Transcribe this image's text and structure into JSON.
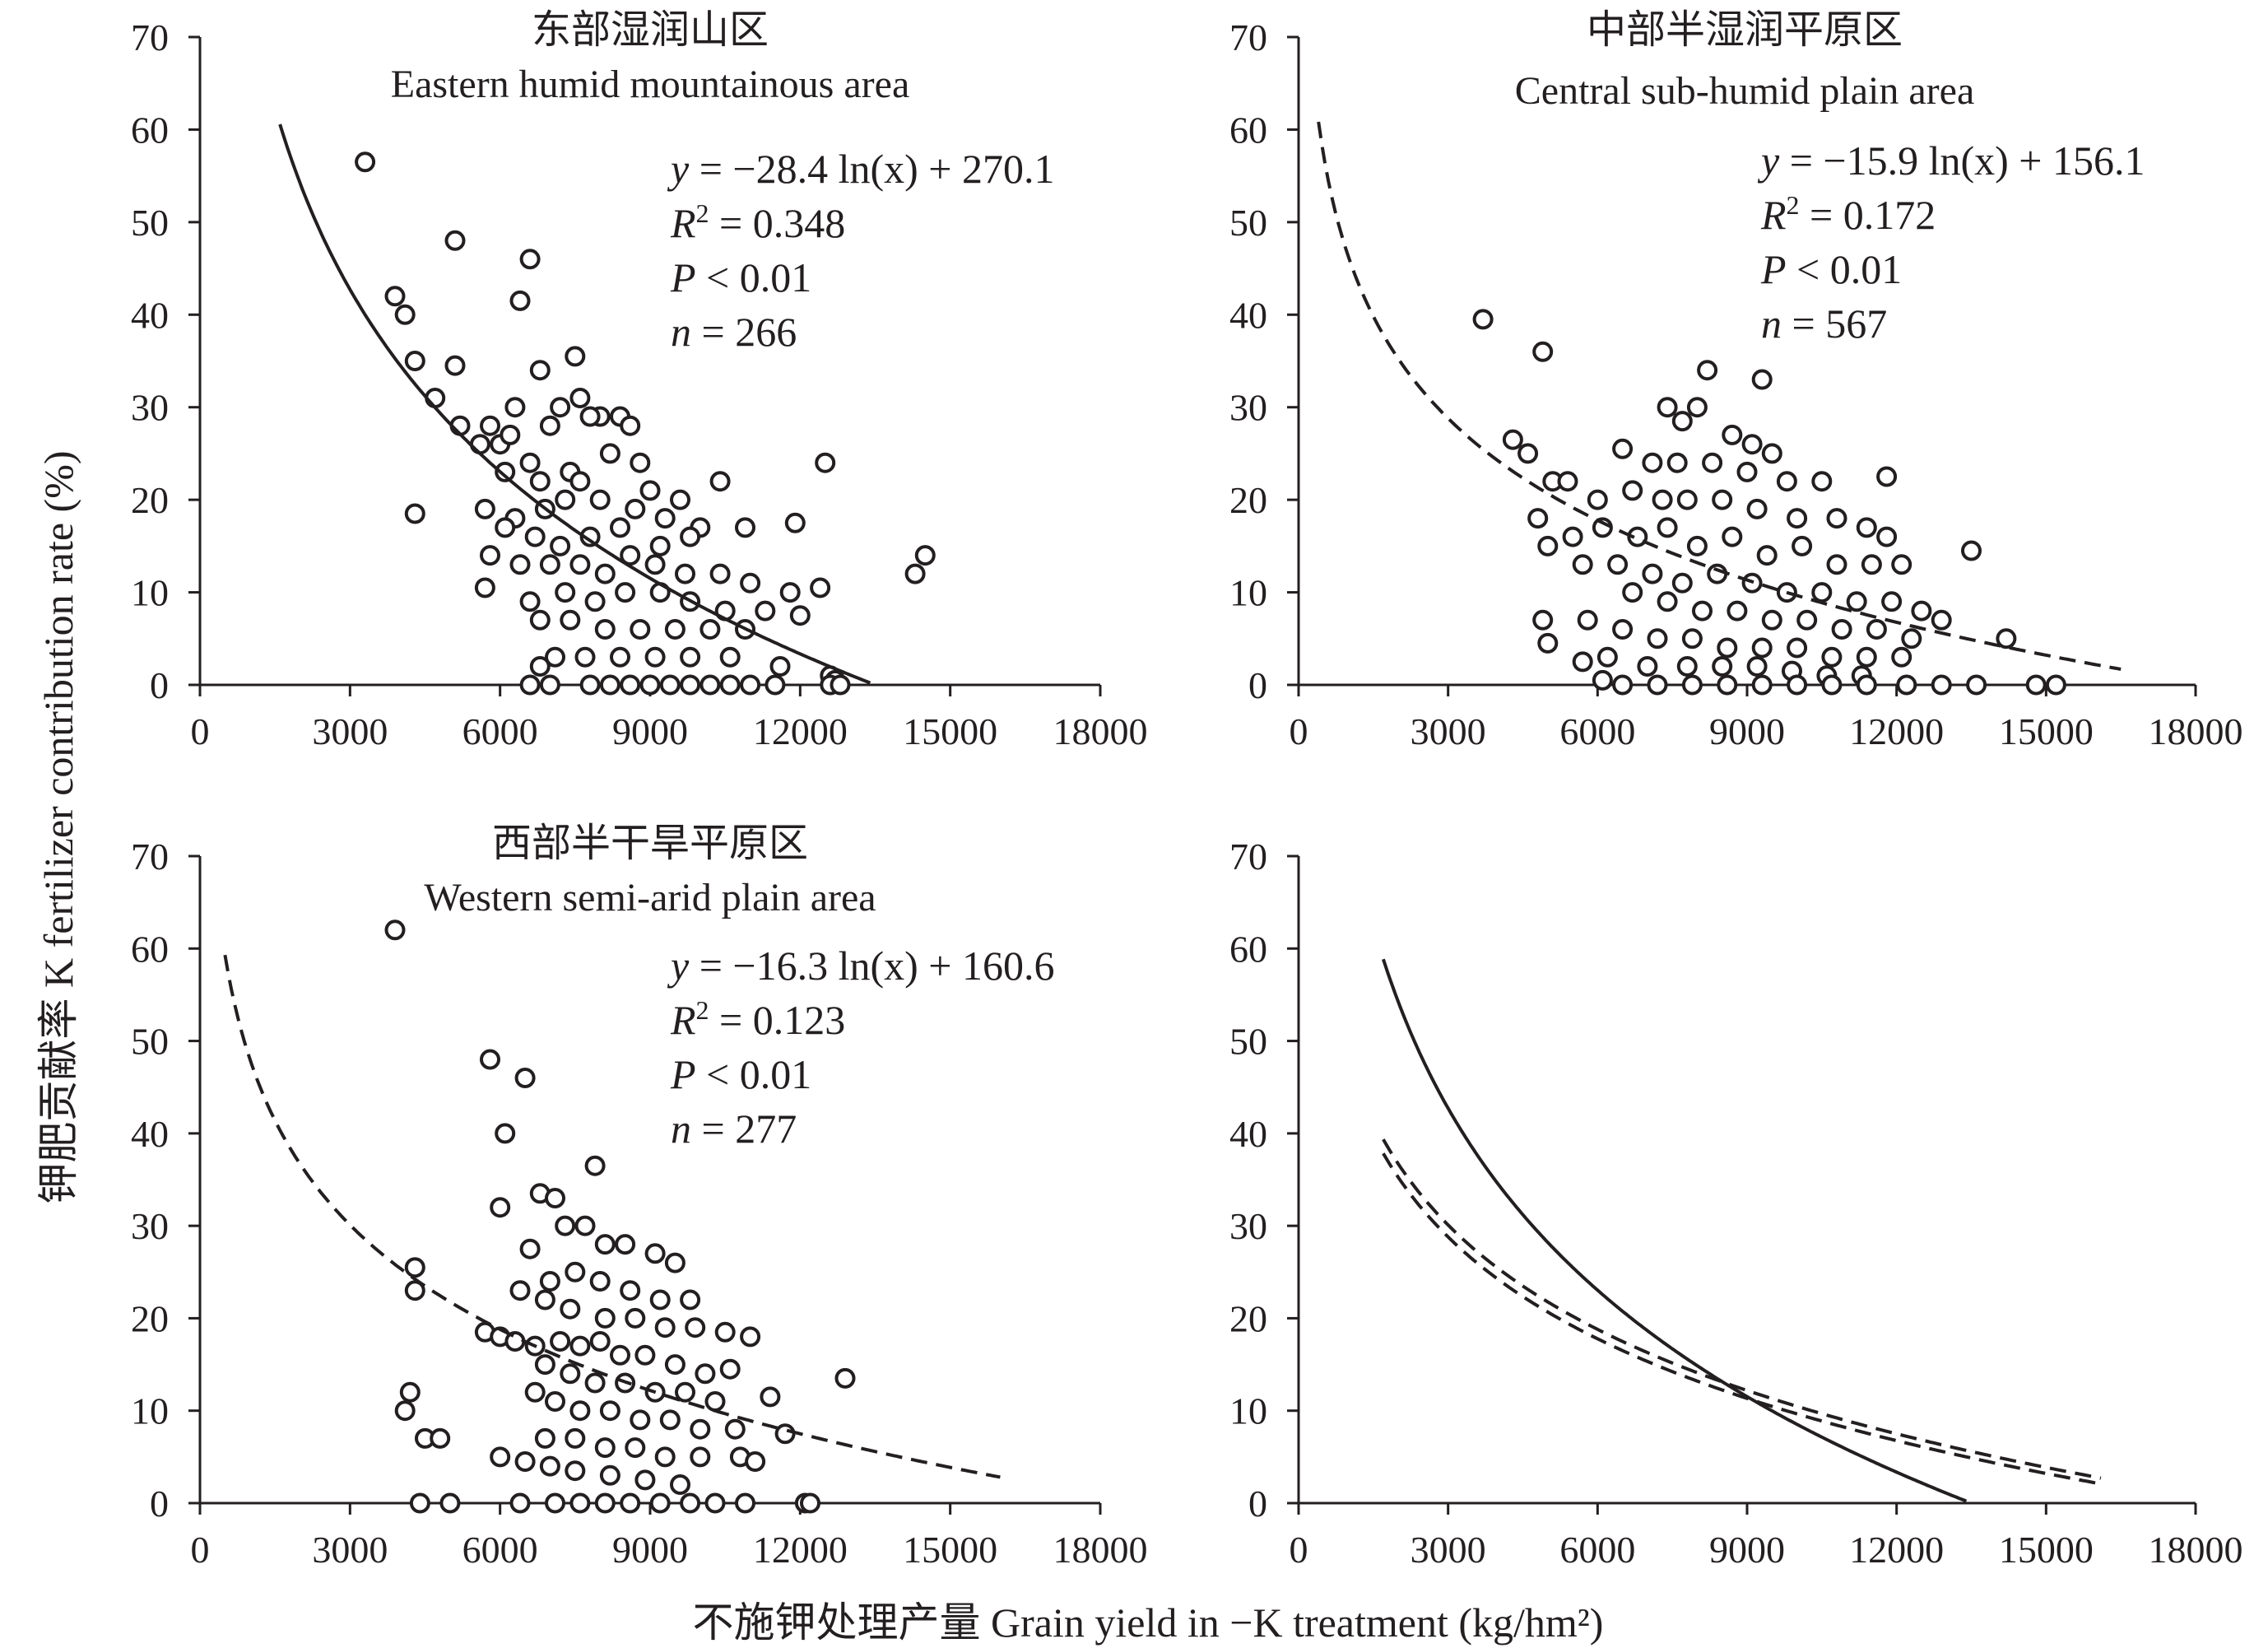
{
  "figure": {
    "y_axis_label": "钾肥贡献率 K fertilizer contribution rate (%)",
    "x_axis_label": "不施钾处理产量 Grain yield in −K treatment (kg/hm²)"
  },
  "chart_data": [
    {
      "type": "scatter",
      "title": "东部湿润山区",
      "subtitle": "Eastern humid mountainous area",
      "line_style": "solid",
      "fit": {
        "model": "logarithmic",
        "a": -28.4,
        "b": 270.1,
        "x_range": [
          1600,
          13400
        ]
      },
      "stats": {
        "equation_rhs": "−28.4 ln(x) + 270.1",
        "r2": "0.348",
        "p": "0.01",
        "n": "266"
      },
      "xlim": [
        0,
        18000
      ],
      "ylim": [
        0,
        70
      ],
      "xticks": [
        "0",
        "3000",
        "6000",
        "9000",
        "12000",
        "15000",
        "18000"
      ],
      "yticks": [
        "0",
        "10",
        "20",
        "30",
        "40",
        "50",
        "60",
        "70"
      ],
      "points": [
        [
          3300,
          56.5
        ],
        [
          5100,
          48
        ],
        [
          6600,
          46
        ],
        [
          3900,
          42
        ],
        [
          4100,
          40
        ],
        [
          6400,
          41.5
        ],
        [
          4300,
          35
        ],
        [
          5100,
          34.5
        ],
        [
          7500,
          35.5
        ],
        [
          6800,
          34
        ],
        [
          4700,
          31
        ],
        [
          6300,
          30
        ],
        [
          7200,
          30
        ],
        [
          7600,
          31
        ],
        [
          8000,
          29
        ],
        [
          8400,
          29
        ],
        [
          5800,
          28
        ],
        [
          6000,
          26
        ],
        [
          6200,
          27
        ],
        [
          7000,
          28
        ],
        [
          7800,
          29
        ],
        [
          8600,
          28
        ],
        [
          6600,
          24
        ],
        [
          7400,
          23
        ],
        [
          8200,
          25
        ],
        [
          8800,
          24
        ],
        [
          5200,
          28
        ],
        [
          5600,
          26
        ],
        [
          6100,
          23
        ],
        [
          6800,
          22
        ],
        [
          7600,
          22
        ],
        [
          9000,
          21
        ],
        [
          9600,
          20
        ],
        [
          10400,
          22
        ],
        [
          5700,
          19
        ],
        [
          6300,
          18
        ],
        [
          6900,
          19
        ],
        [
          7300,
          20
        ],
        [
          8000,
          20
        ],
        [
          8700,
          19
        ],
        [
          9300,
          18
        ],
        [
          10000,
          17
        ],
        [
          10900,
          17
        ],
        [
          11900,
          17.5
        ],
        [
          12500,
          24
        ],
        [
          4300,
          18.5
        ],
        [
          6100,
          17
        ],
        [
          6700,
          16
        ],
        [
          7200,
          15
        ],
        [
          7800,
          16
        ],
        [
          8400,
          17
        ],
        [
          9200,
          15
        ],
        [
          9800,
          16
        ],
        [
          5800,
          14
        ],
        [
          6400,
          13
        ],
        [
          7000,
          13
        ],
        [
          7600,
          13
        ],
        [
          8100,
          12
        ],
        [
          8600,
          14
        ],
        [
          9100,
          13
        ],
        [
          9700,
          12
        ],
        [
          10400,
          12
        ],
        [
          11000,
          11
        ],
        [
          11800,
          10
        ],
        [
          12400,
          10.5
        ],
        [
          14300,
          12
        ],
        [
          14500,
          14
        ],
        [
          5700,
          10.5
        ],
        [
          6600,
          9
        ],
        [
          7300,
          10
        ],
        [
          7900,
          9
        ],
        [
          8500,
          10
        ],
        [
          9200,
          10
        ],
        [
          9800,
          9
        ],
        [
          10500,
          8
        ],
        [
          11300,
          8
        ],
        [
          12000,
          7.5
        ],
        [
          6800,
          7
        ],
        [
          7400,
          7
        ],
        [
          8100,
          6
        ],
        [
          8800,
          6
        ],
        [
          9500,
          6
        ],
        [
          10200,
          6
        ],
        [
          10900,
          6
        ],
        [
          7100,
          3
        ],
        [
          7700,
          3
        ],
        [
          8400,
          3
        ],
        [
          9100,
          3
        ],
        [
          9800,
          3
        ],
        [
          10600,
          3
        ],
        [
          11600,
          2
        ],
        [
          6800,
          2
        ],
        [
          12600,
          1
        ],
        [
          12700,
          0.5
        ],
        [
          6600,
          0
        ],
        [
          7000,
          0
        ],
        [
          7800,
          0
        ],
        [
          8200,
          0
        ],
        [
          8600,
          0
        ],
        [
          9000,
          0
        ],
        [
          9400,
          0
        ],
        [
          9800,
          0
        ],
        [
          10200,
          0
        ],
        [
          10600,
          0
        ],
        [
          11000,
          0
        ],
        [
          11500,
          0
        ],
        [
          12600,
          0
        ],
        [
          12800,
          0
        ]
      ]
    },
    {
      "type": "scatter",
      "title": "中部半湿润平原区",
      "subtitle": "Central sub-humid plain area",
      "line_style": "dashed",
      "fit": {
        "model": "logarithmic",
        "a": -15.9,
        "b": 156.1,
        "x_range": [
          400,
          16500
        ]
      },
      "stats": {
        "equation_rhs": "−15.9 ln(x) + 156.1",
        "r2": "0.172",
        "p": "0.01",
        "n": "567"
      },
      "xlim": [
        0,
        18000
      ],
      "ylim": [
        0,
        70
      ],
      "xticks": [
        "0",
        "3000",
        "6000",
        "9000",
        "12000",
        "15000",
        "18000"
      ],
      "yticks": [
        "0",
        "10",
        "20",
        "30",
        "40",
        "50",
        "60",
        "70"
      ],
      "points": [
        [
          3700,
          39.5
        ],
        [
          4900,
          36
        ],
        [
          8200,
          34
        ],
        [
          9300,
          33
        ],
        [
          4300,
          26.5
        ],
        [
          4600,
          25
        ],
        [
          7400,
          30
        ],
        [
          7700,
          28.5
        ],
        [
          8000,
          30
        ],
        [
          8700,
          27
        ],
        [
          9100,
          26
        ],
        [
          9500,
          25
        ],
        [
          6500,
          25.5
        ],
        [
          7100,
          24
        ],
        [
          7600,
          24
        ],
        [
          8300,
          24
        ],
        [
          9000,
          23
        ],
        [
          9800,
          22
        ],
        [
          10500,
          22
        ],
        [
          11800,
          22.5
        ],
        [
          5100,
          22
        ],
        [
          5400,
          22
        ],
        [
          6000,
          20
        ],
        [
          6700,
          21
        ],
        [
          7300,
          20
        ],
        [
          7800,
          20
        ],
        [
          8500,
          20
        ],
        [
          9200,
          19
        ],
        [
          10000,
          18
        ],
        [
          10800,
          18
        ],
        [
          11400,
          17
        ],
        [
          11800,
          16
        ],
        [
          4800,
          18
        ],
        [
          5500,
          16
        ],
        [
          6100,
          17
        ],
        [
          6800,
          16
        ],
        [
          7400,
          17
        ],
        [
          8000,
          15
        ],
        [
          8700,
          16
        ],
        [
          9400,
          14
        ],
        [
          10100,
          15
        ],
        [
          10800,
          13
        ],
        [
          11500,
          13
        ],
        [
          12100,
          13
        ],
        [
          13500,
          14.5
        ],
        [
          5000,
          15
        ],
        [
          5700,
          13
        ],
        [
          6400,
          13
        ],
        [
          7100,
          12
        ],
        [
          7700,
          11
        ],
        [
          8400,
          12
        ],
        [
          9100,
          11
        ],
        [
          9800,
          10
        ],
        [
          10500,
          10
        ],
        [
          11200,
          9
        ],
        [
          11900,
          9
        ],
        [
          12500,
          8
        ],
        [
          6700,
          10
        ],
        [
          7400,
          9
        ],
        [
          8100,
          8
        ],
        [
          8800,
          8
        ],
        [
          9500,
          7
        ],
        [
          10200,
          7
        ],
        [
          10900,
          6
        ],
        [
          11600,
          6
        ],
        [
          12300,
          5
        ],
        [
          12900,
          7
        ],
        [
          14200,
          5
        ],
        [
          4900,
          7
        ],
        [
          5800,
          7
        ],
        [
          6500,
          6
        ],
        [
          7200,
          5
        ],
        [
          7900,
          5
        ],
        [
          8600,
          4
        ],
        [
          9300,
          4
        ],
        [
          10000,
          4
        ],
        [
          10700,
          3
        ],
        [
          11400,
          3
        ],
        [
          12100,
          3
        ],
        [
          5000,
          4.5
        ],
        [
          5700,
          2.5
        ],
        [
          6200,
          3
        ],
        [
          7000,
          2
        ],
        [
          7800,
          2
        ],
        [
          8500,
          2
        ],
        [
          9200,
          2
        ],
        [
          9900,
          1.5
        ],
        [
          10600,
          1
        ],
        [
          11300,
          1
        ],
        [
          6100,
          0.5
        ],
        [
          6500,
          0
        ],
        [
          7200,
          0
        ],
        [
          7900,
          0
        ],
        [
          8600,
          0
        ],
        [
          9300,
          0
        ],
        [
          10000,
          0
        ],
        [
          10700,
          0
        ],
        [
          11400,
          0
        ],
        [
          12200,
          0
        ],
        [
          12900,
          0
        ],
        [
          13600,
          0
        ],
        [
          14800,
          0
        ],
        [
          15200,
          0
        ]
      ]
    },
    {
      "type": "scatter",
      "title": "西部半干旱平原区",
      "subtitle": "Western semi-arid plain area",
      "line_style": "dashed",
      "fit": {
        "model": "logarithmic",
        "a": -16.3,
        "b": 160.6,
        "x_range": [
          500,
          16000
        ]
      },
      "stats": {
        "equation_rhs": "−16.3 ln(x) + 160.6",
        "r2": "0.123",
        "p": "0.01",
        "n": "277"
      },
      "xlim": [
        0,
        18000
      ],
      "ylim": [
        0,
        70
      ],
      "xticks": [
        "0",
        "3000",
        "6000",
        "9000",
        "12000",
        "15000",
        "18000"
      ],
      "yticks": [
        "0",
        "10",
        "20",
        "30",
        "40",
        "50",
        "60",
        "70"
      ],
      "points": [
        [
          3900,
          62
        ],
        [
          5800,
          48
        ],
        [
          6500,
          46
        ],
        [
          6100,
          40
        ],
        [
          7900,
          36.5
        ],
        [
          6800,
          33.5
        ],
        [
          7100,
          33
        ],
        [
          6000,
          32
        ],
        [
          7300,
          30
        ],
        [
          7700,
          30
        ],
        [
          8100,
          28
        ],
        [
          8500,
          28
        ],
        [
          9100,
          27
        ],
        [
          9500,
          26
        ],
        [
          4300,
          25.5
        ],
        [
          6600,
          27.5
        ],
        [
          7000,
          24
        ],
        [
          7500,
          25
        ],
        [
          8000,
          24
        ],
        [
          8600,
          23
        ],
        [
          9200,
          22
        ],
        [
          9800,
          22
        ],
        [
          4300,
          23
        ],
        [
          6400,
          23
        ],
        [
          6900,
          22
        ],
        [
          7400,
          21
        ],
        [
          8100,
          20
        ],
        [
          8700,
          20
        ],
        [
          9300,
          19
        ],
        [
          9900,
          19
        ],
        [
          10500,
          18.5
        ],
        [
          11000,
          18
        ],
        [
          5700,
          18.5
        ],
        [
          6000,
          18
        ],
        [
          6300,
          17.5
        ],
        [
          6700,
          17
        ],
        [
          7200,
          17.5
        ],
        [
          7600,
          17
        ],
        [
          8000,
          17.5
        ],
        [
          8400,
          16
        ],
        [
          8900,
          16
        ],
        [
          9500,
          15
        ],
        [
          10100,
          14
        ],
        [
          10600,
          14.5
        ],
        [
          12900,
          13.5
        ],
        [
          6900,
          15
        ],
        [
          7400,
          14
        ],
        [
          7900,
          13
        ],
        [
          8500,
          13
        ],
        [
          9100,
          12
        ],
        [
          9700,
          12
        ],
        [
          10300,
          11
        ],
        [
          11400,
          11.5
        ],
        [
          4200,
          12
        ],
        [
          4100,
          10
        ],
        [
          6700,
          12
        ],
        [
          7100,
          11
        ],
        [
          7600,
          10
        ],
        [
          8200,
          10
        ],
        [
          8800,
          9
        ],
        [
          9400,
          9
        ],
        [
          10000,
          8
        ],
        [
          10700,
          8
        ],
        [
          11700,
          7.5
        ],
        [
          4500,
          7
        ],
        [
          4800,
          7
        ],
        [
          6900,
          7
        ],
        [
          7500,
          7
        ],
        [
          8100,
          6
        ],
        [
          8700,
          6
        ],
        [
          9300,
          5
        ],
        [
          10000,
          5
        ],
        [
          10800,
          5
        ],
        [
          11100,
          4.5
        ],
        [
          6000,
          5
        ],
        [
          6500,
          4.5
        ],
        [
          7000,
          4
        ],
        [
          7500,
          3.5
        ],
        [
          8200,
          3
        ],
        [
          8900,
          2.5
        ],
        [
          9600,
          2
        ],
        [
          4400,
          0
        ],
        [
          5000,
          0
        ],
        [
          6400,
          0
        ],
        [
          7100,
          0
        ],
        [
          7600,
          0
        ],
        [
          8100,
          0
        ],
        [
          8600,
          0
        ],
        [
          9200,
          0
        ],
        [
          9800,
          0
        ],
        [
          10300,
          0
        ],
        [
          10900,
          0
        ],
        [
          12100,
          0
        ],
        [
          12200,
          0
        ]
      ]
    },
    {
      "type": "line",
      "xlim": [
        0,
        18000
      ],
      "ylim": [
        0,
        70
      ],
      "xticks": [
        "0",
        "3000",
        "6000",
        "9000",
        "12000",
        "15000",
        "18000"
      ],
      "yticks": [
        "0",
        "10",
        "20",
        "30",
        "40",
        "50",
        "60",
        "70"
      ],
      "lines": [
        {
          "model": "logarithmic",
          "a": -28.4,
          "b": 270.1,
          "x_range": [
            1700,
            13400
          ],
          "style": "solid"
        },
        {
          "model": "logarithmic",
          "a": -15.9,
          "b": 156.1,
          "x_range": [
            1700,
            16100
          ],
          "style": "dashed"
        },
        {
          "model": "logarithmic",
          "a": -16.3,
          "b": 160.6,
          "x_range": [
            1700,
            16100
          ],
          "style": "dashed"
        }
      ]
    }
  ]
}
